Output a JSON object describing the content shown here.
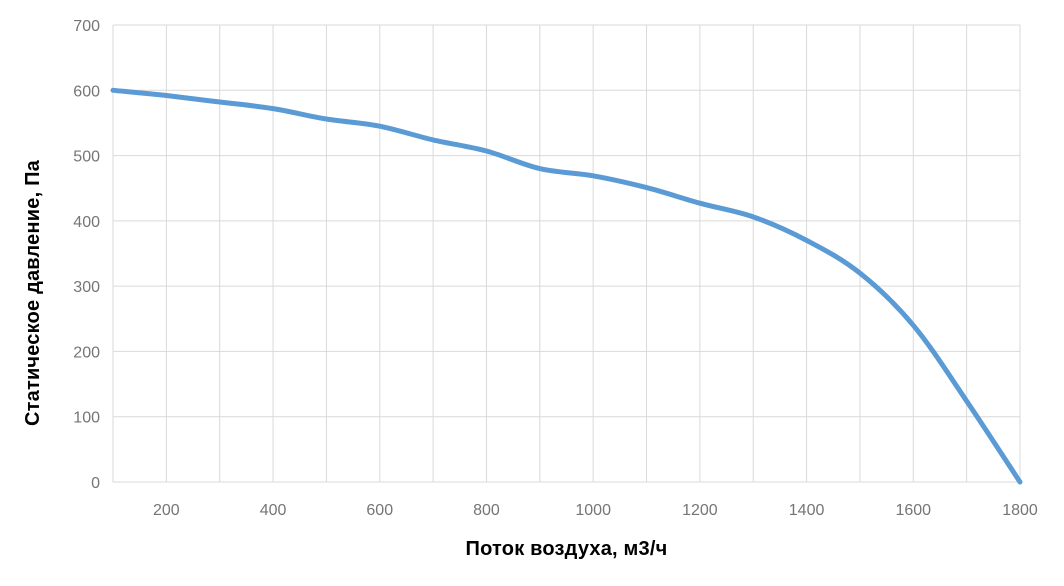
{
  "chart_data": {
    "type": "line",
    "title": "",
    "xlabel": "Поток воздуха, м3/ч",
    "ylabel": "Статическое давление, Па",
    "x": [
      100,
      200,
      300,
      400,
      500,
      600,
      700,
      800,
      900,
      1000,
      1100,
      1200,
      1300,
      1400,
      1500,
      1600,
      1700,
      1800
    ],
    "series": [
      {
        "name": "Статическое давление",
        "values": [
          600,
          592,
          582,
          572,
          556,
          545,
          524,
          507,
          480,
          469,
          451,
          427,
          406,
          370,
          320,
          240,
          124,
          0
        ]
      }
    ],
    "xlim": [
      100,
      1800
    ],
    "ylim": [
      0,
      700
    ],
    "x_gridline_step": 100,
    "y_gridline_step": 100,
    "x_tick_labels": [
      200,
      400,
      600,
      800,
      1000,
      1200,
      1400,
      1600,
      1800
    ],
    "y_tick_labels": [
      0,
      100,
      200,
      300,
      400,
      500,
      600,
      700
    ],
    "grid": true,
    "legend_position": "none",
    "smooth_line": true,
    "colors": {
      "line": "#5B9BD5",
      "gridline": "#D9D9D9",
      "tick_label": "#757575",
      "axis_title": "#000000",
      "background": "#FFFFFF"
    },
    "line_width": 5
  }
}
